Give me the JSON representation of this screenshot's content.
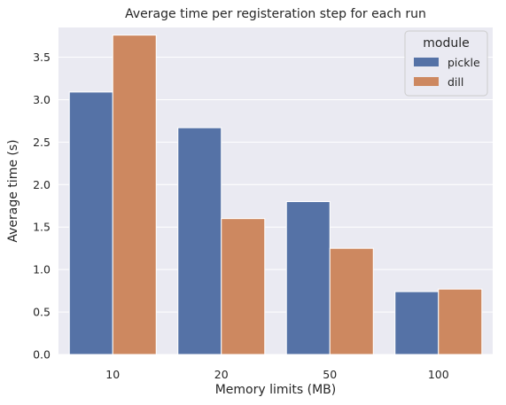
{
  "chart_data": {
    "type": "bar",
    "title": "Average time per registeration step for each run",
    "xlabel": "Memory limits (MB)",
    "ylabel": "Average time (s)",
    "categories": [
      "10",
      "20",
      "50",
      "100"
    ],
    "series": [
      {
        "name": "pickle",
        "values": [
          3.09,
          2.67,
          1.8,
          0.74
        ],
        "color": "#5572a6"
      },
      {
        "name": "dill",
        "values": [
          3.76,
          1.6,
          1.25,
          0.77
        ],
        "color": "#cd8860"
      }
    ],
    "ylim": [
      0,
      3.85
    ],
    "yticks": [
      0.0,
      0.5,
      1.0,
      1.5,
      2.0,
      2.5,
      3.0,
      3.5
    ],
    "ytick_labels": [
      "0.0",
      "0.5",
      "1.0",
      "1.5",
      "2.0",
      "2.5",
      "3.0",
      "3.5"
    ],
    "grid": true,
    "legend": {
      "title": "module",
      "position": "top-right"
    },
    "plot_background": "#eaeaf2",
    "grid_color": "#ffffff"
  }
}
